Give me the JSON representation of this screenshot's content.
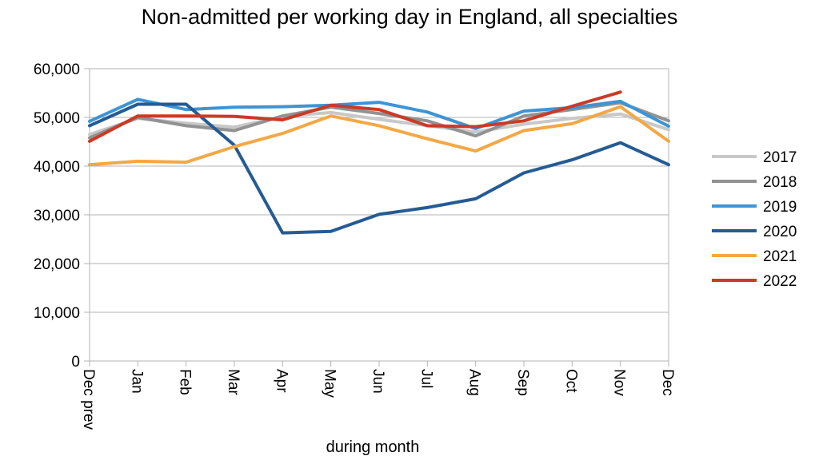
{
  "chart_data": {
    "type": "line",
    "title": "Non-admitted per working day in England, all specialties",
    "xlabel": "during  month",
    "ylabel": "",
    "ylim": [
      0,
      60000
    ],
    "y_ticks": [
      "0",
      "10,000",
      "20,000",
      "30,000",
      "40,000",
      "50,000",
      "60,000"
    ],
    "y_tick_values": [
      0,
      10000,
      20000,
      30000,
      40000,
      50000,
      60000
    ],
    "categories": [
      "Dec prev",
      "Jan",
      "Feb",
      "Mar",
      "Apr",
      "May",
      "Jun",
      "Jul",
      "Aug",
      "Sep",
      "Oct",
      "Nov",
      "Dec"
    ],
    "grid": "horizontal",
    "legend_position": "right",
    "series": [
      {
        "name": "2017",
        "color": "#c8c8c8",
        "values": [
          46500,
          49800,
          48800,
          48000,
          50200,
          51000,
          49600,
          48300,
          47000,
          48600,
          49800,
          50700,
          47500
        ]
      },
      {
        "name": "2018",
        "color": "#929292",
        "values": [
          45800,
          50000,
          48300,
          47300,
          50300,
          52100,
          50800,
          49300,
          46200,
          50300,
          51600,
          53000,
          49300
        ]
      },
      {
        "name": "2019",
        "color": "#3d94d6",
        "values": [
          49200,
          53700,
          51600,
          52100,
          52200,
          52500,
          53100,
          51100,
          47700,
          51300,
          52000,
          53300,
          48200
        ]
      },
      {
        "name": "2020",
        "color": "#255b94",
        "values": [
          48300,
          52700,
          52700,
          44300,
          26300,
          26600,
          30100,
          31500,
          33300,
          38600,
          41300,
          44800,
          40300
        ]
      },
      {
        "name": "2021",
        "color": "#f3a845",
        "values": [
          40300,
          41000,
          40800,
          44000,
          46700,
          50300,
          48300,
          45600,
          43100,
          47300,
          48700,
          52200,
          45100
        ]
      },
      {
        "name": "2022",
        "color": "#cc3a25",
        "values": [
          45100,
          50300,
          50300,
          50200,
          49500,
          52500,
          51600,
          48300,
          48100,
          49300,
          52300,
          55200,
          null
        ]
      }
    ]
  }
}
